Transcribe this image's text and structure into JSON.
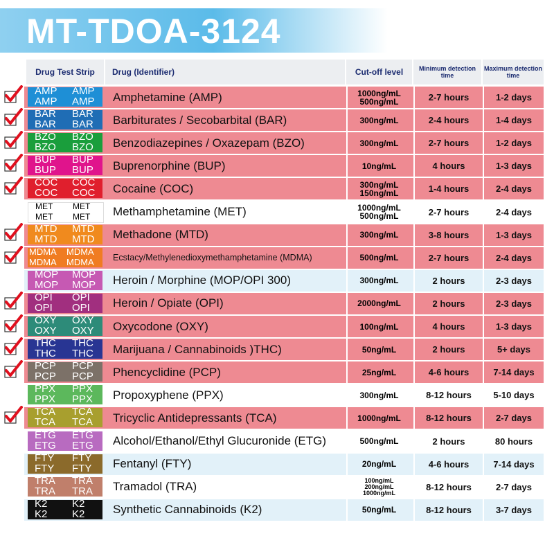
{
  "title": "MT-TDOA-3124",
  "headers": [
    "Drug Test Strip",
    "Drug (Identifier)",
    "Cut-off level",
    "Minimum detection time",
    "Maximum detection time"
  ],
  "rows": [
    {
      "code": "AMP",
      "strip_color": "#1e8fd6",
      "drug": "Amphetamine (AMP)",
      "cutoff": [
        "1000ng/mL",
        "500ng/mL"
      ],
      "min": "2-7 hours",
      "max": "1-2 days",
      "checked": true,
      "background": "#ee8a92"
    },
    {
      "code": "BAR",
      "strip_color": "#1f6db5",
      "drug": "Barbiturates / Secobarbital (BAR)",
      "cutoff": [
        "300ng/mL"
      ],
      "min": "2-4 hours",
      "max": "1-4 days",
      "checked": true,
      "background": "#ee8a92"
    },
    {
      "code": "BZO",
      "strip_color": "#1a9e3c",
      "drug": "Benzodiazepines / Oxazepam (BZO)",
      "cutoff": [
        "300ng/mL"
      ],
      "min": "2-7 hours",
      "max": "1-2 days",
      "checked": true,
      "background": "#ee8a92"
    },
    {
      "code": "BUP",
      "strip_color": "#e0148c",
      "drug": "Buprenorphine (BUP)",
      "cutoff": [
        "10ng/mL"
      ],
      "min": "4 hours",
      "max": "1-3 days",
      "checked": true,
      "background": "#ee8a92"
    },
    {
      "code": "COC",
      "strip_color": "#e01f2d",
      "drug": "Cocaine (COC)",
      "cutoff": [
        "300ng/mL",
        "150ng/mL"
      ],
      "min": "1-4 hours",
      "max": "2-4 days",
      "checked": true,
      "background": "#ee8a92"
    },
    {
      "code": "MET",
      "strip_color": "#ffffff",
      "drug": "Methamphetamine (MET)",
      "cutoff": [
        "1000ng/mL",
        "500ng/mL"
      ],
      "min": "2-7 hours",
      "max": "2-4 days",
      "checked": false,
      "background": "#ffffff"
    },
    {
      "code": "MTD",
      "strip_color": "#f08a1e",
      "drug": "Methadone (MTD)",
      "cutoff": [
        "300ng/mL"
      ],
      "min": "3-8 hours",
      "max": "1-3 days",
      "checked": true,
      "background": "#ee8a92"
    },
    {
      "code": "MDMA",
      "strip_color": "#f07c22",
      "drug": "Ecstacy/Methylenedioxymethamphetamine (MDMA)",
      "cutoff": [
        "500ng/mL"
      ],
      "min": "2-7 hours",
      "max": "2-4 days",
      "checked": true,
      "background": "#ee8a92"
    },
    {
      "code": "MOP",
      "strip_color": "#c659b3",
      "drug": "Heroin / Morphine (MOP/OPI 300)",
      "cutoff": [
        "300ng/mL"
      ],
      "min": "2 hours",
      "max": "2-3 days",
      "checked": false,
      "background": "#e2f1f9"
    },
    {
      "code": "OPI",
      "strip_color": "#a12f7f",
      "drug": "Heroin / Opiate (OPI)",
      "cutoff": [
        "2000ng/mL"
      ],
      "min": "2 hours",
      "max": "2-3 days",
      "checked": true,
      "background": "#ee8a92"
    },
    {
      "code": "OXY",
      "strip_color": "#2d8b79",
      "drug": "Oxycodone (OXY)",
      "cutoff": [
        "100ng/mL"
      ],
      "min": "4 hours",
      "max": "1-3 days",
      "checked": true,
      "background": "#ee8a92"
    },
    {
      "code": "THC",
      "strip_color": "#283593",
      "drug": "Marijuana / Cannabinoids )THC)",
      "cutoff": [
        "50ng/mL"
      ],
      "min": "2 hours",
      "max": "5+ days",
      "checked": true,
      "background": "#ee8a92"
    },
    {
      "code": "PCP",
      "strip_color": "#7c7168",
      "drug": "Phencyclidine (PCP)",
      "cutoff": [
        "25ng/mL"
      ],
      "min": "4-6 hours",
      "max": "7-14 days",
      "checked": true,
      "background": "#ee8a92"
    },
    {
      "code": "PPX",
      "strip_color": "#5cb85c",
      "drug": "Propoxyphene (PPX)",
      "cutoff": [
        "300ng/mL"
      ],
      "min": "8-12 hours",
      "max": "5-10 days",
      "checked": false,
      "background": "#ffffff"
    },
    {
      "code": "TCA",
      "strip_color": "#a89f2e",
      "drug": "Tricyclic Antidepressants (TCA)",
      "cutoff": [
        "1000ng/mL"
      ],
      "min": "8-12 hours",
      "max": "2-7 days",
      "checked": true,
      "background": "#ee8a92"
    },
    {
      "code": "ETG",
      "strip_color": "#b86bc0",
      "drug": "Alcohol/Ethanol/Ethyl Glucuronide (ETG)",
      "cutoff": [
        "500ng/mL"
      ],
      "min": "2 hours",
      "max": "80 hours",
      "checked": false,
      "background": "#ffffff"
    },
    {
      "code": "FTY",
      "strip_color": "#8b6a2b",
      "drug": "Fentanyl (FTY)",
      "cutoff": [
        "20ng/mL"
      ],
      "min": "4-6 hours",
      "max": "7-14 days",
      "checked": false,
      "background": "#e2f1f9"
    },
    {
      "code": "TRA",
      "strip_color": "#c07f6b",
      "drug": "Tramadol (TRA)",
      "cutoff": [
        "100ng/mL",
        "200ng/mL",
        "1000ng/mL"
      ],
      "min": "8-12 hours",
      "max": "2-7 days",
      "checked": false,
      "background": "#ffffff"
    },
    {
      "code": "K2",
      "strip_color": "#111111",
      "drug": "Synthetic Cannabinoids (K2)",
      "cutoff": [
        "50ng/mL"
      ],
      "min": "8-12 hours",
      "max": "3-7 days",
      "checked": false,
      "background": "#e2f1f9"
    }
  ]
}
